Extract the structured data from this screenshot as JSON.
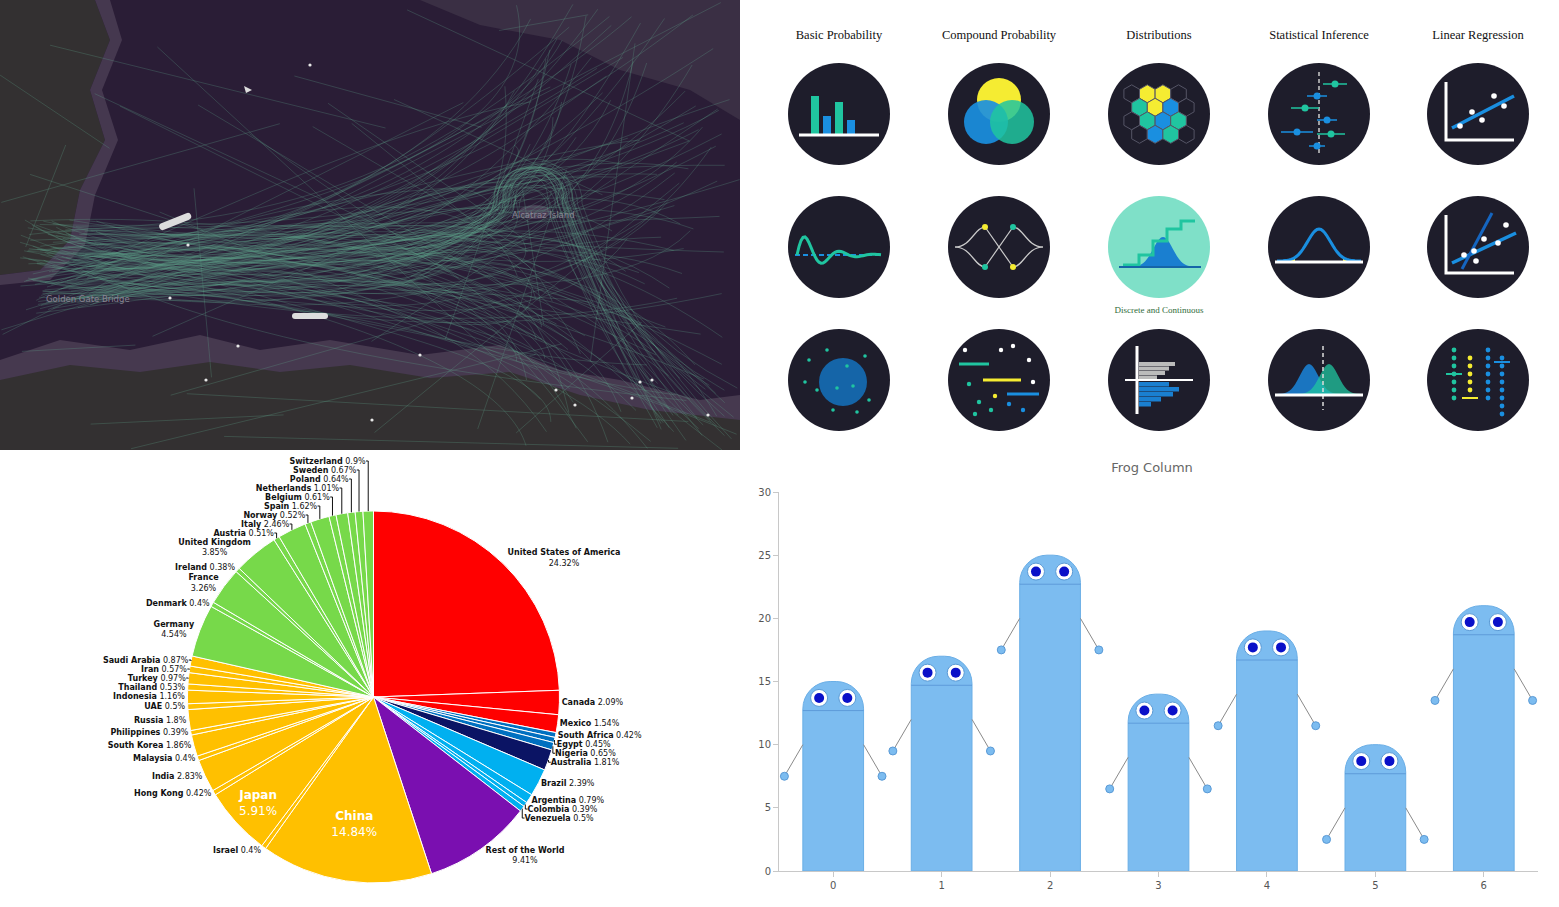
{
  "map": {
    "labels": [
      {
        "text": "Golden Gate Bridge"
      },
      {
        "text": "Alcatraz Island"
      }
    ]
  },
  "icon_grid": {
    "columns": [
      {
        "title": "Basic Probability"
      },
      {
        "title": "Compound Probability"
      },
      {
        "title": "Distributions",
        "caption": "Discrete and Continuous"
      },
      {
        "title": "Statistical Inference"
      },
      {
        "title": "Linear Regression"
      }
    ]
  },
  "chart_data": [
    {
      "type": "pie",
      "categories": [
        "United States of America",
        "Canada",
        "Mexico",
        "South Africa",
        "Egypt",
        "Nigeria",
        "Australia",
        "Brazil",
        "Argentina",
        "Colombia",
        "Venezuela",
        "Rest of the World",
        "China",
        "Israel",
        "Japan",
        "Hong Kong",
        "India",
        "Malaysia",
        "South Korea",
        "Philippines",
        "Russia",
        "UAE",
        "Indonesia",
        "Thailand",
        "Turkey",
        "Iran",
        "Saudi Arabia",
        "Germany",
        "Denmark",
        "France",
        "Ireland",
        "United Kingdom",
        "Austria",
        "Italy",
        "Norway",
        "Spain",
        "Belgium",
        "Netherlands",
        "Poland",
        "Sweden",
        "Switzerland"
      ],
      "values": [
        24.32,
        2.09,
        1.54,
        0.42,
        0.45,
        0.65,
        1.81,
        2.39,
        0.79,
        0.39,
        0.5,
        9.41,
        14.84,
        0.4,
        5.91,
        0.42,
        2.83,
        0.4,
        1.86,
        0.39,
        1.8,
        0.5,
        1.16,
        0.53,
        0.97,
        0.57,
        0.87,
        4.54,
        0.4,
        3.26,
        0.38,
        3.85,
        0.51,
        2.46,
        0.52,
        1.62,
        0.61,
        1.01,
        0.64,
        0.67,
        0.9
      ],
      "value_labels": [
        "24.32%",
        "2.09%",
        "1.54%",
        "0.42%",
        "0.45%",
        "0.65%",
        "1.81%",
        "2.39%",
        "0.79%",
        "0.39%",
        "0.5%",
        "9.41%",
        "14.84%",
        "0.4%",
        "5.91%",
        "0.42%",
        "2.83%",
        "0.4%",
        "1.86%",
        "0.39%",
        "1.8%",
        "0.5%",
        "1.16%",
        "0.53%",
        "0.97%",
        "0.57%",
        "0.87%",
        "4.54%",
        "0.4%",
        "3.26%",
        "0.38%",
        "3.85%",
        "0.51%",
        "2.46%",
        "0.52%",
        "1.62%",
        "0.61%",
        "1.01%",
        "0.64%",
        "0.67%",
        "0.9%"
      ],
      "colors": [
        "#ff0000",
        "#ff0000",
        "#ff0000",
        "#0070c0",
        "#0070c0",
        "#0070c0",
        "#0b1464",
        "#00b0f0",
        "#00b0f0",
        "#00b0f0",
        "#00b0f0",
        "#7a0fb0",
        "#ffc000",
        "#ffc000",
        "#ffc000",
        "#ffc000",
        "#ffc000",
        "#ffc000",
        "#ffc000",
        "#ffc000",
        "#ffc000",
        "#ffc000",
        "#ffc000",
        "#ffc000",
        "#ffc000",
        "#ffc000",
        "#ffc000",
        "#77d94a",
        "#77d94a",
        "#77d94a",
        "#77d94a",
        "#77d94a",
        "#77d94a",
        "#77d94a",
        "#77d94a",
        "#77d94a",
        "#77d94a",
        "#77d94a",
        "#77d94a",
        "#77d94a",
        "#77d94a"
      ],
      "data_labels": true
    },
    {
      "type": "bar",
      "title": "Frog Column",
      "categories": [
        "0",
        "1",
        "2",
        "3",
        "4",
        "5",
        "6"
      ],
      "values": [
        15,
        17,
        25,
        14,
        19,
        10,
        21
      ],
      "color": "#7cbcf0",
      "ylim": [
        0,
        30
      ],
      "yticks": [
        0,
        5,
        10,
        15,
        20,
        25,
        30
      ],
      "grid": false
    }
  ]
}
